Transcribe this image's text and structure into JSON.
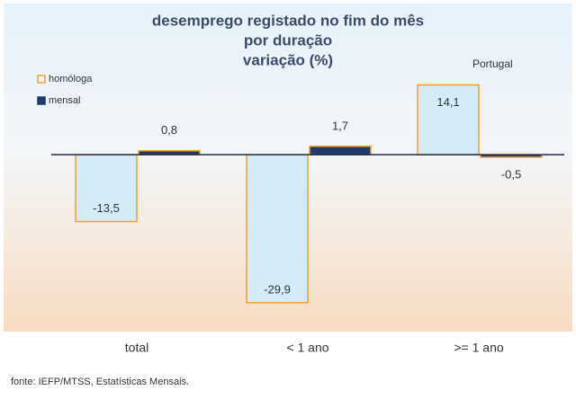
{
  "chart_data": {
    "type": "bar",
    "title": [
      "desemprego registado no fim do mês",
      "por duração",
      "variação (%)"
    ],
    "subtitle": "Portugal",
    "source": "fonte: IEFP/MTSS, Estatísticas Mensais.",
    "categories": [
      "total",
      "< 1 ano",
      ">= 1 ano"
    ],
    "series": [
      {
        "name": "homóloga",
        "color": "#d4ebf8",
        "values": [
          -13.5,
          -29.9,
          14.1
        ],
        "value_labels": [
          "-13,5",
          "-29,9",
          "14,1"
        ]
      },
      {
        "name": "mensal",
        "color": "#1f3a6e",
        "values": [
          0.8,
          1.7,
          -0.5
        ],
        "value_labels": [
          "0,8",
          "1,7",
          "-0,5"
        ]
      }
    ],
    "ylim": [
      -35,
      20
    ],
    "legend": "top-left"
  }
}
